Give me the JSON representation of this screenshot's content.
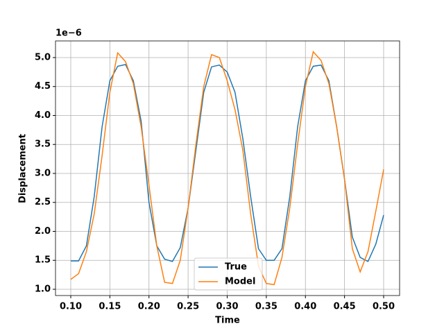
{
  "chart_data": {
    "type": "line",
    "x_label": "Time",
    "y_label": "Displacement",
    "y_offset_text": "1e−6",
    "x": [
      0.1,
      0.11,
      0.12,
      0.13,
      0.14,
      0.15,
      0.16,
      0.17,
      0.18,
      0.19,
      0.2,
      0.21,
      0.22,
      0.23,
      0.24,
      0.25,
      0.26,
      0.27,
      0.28,
      0.29,
      0.3,
      0.31,
      0.32,
      0.33,
      0.34,
      0.35,
      0.36,
      0.37,
      0.38,
      0.39,
      0.4,
      0.41,
      0.42,
      0.43,
      0.44,
      0.45,
      0.46,
      0.47,
      0.48,
      0.49,
      0.5
    ],
    "series": [
      {
        "name": "True",
        "color": "#1f77b4",
        "values": [
          1.49,
          1.49,
          1.75,
          2.6,
          3.8,
          4.6,
          4.85,
          4.88,
          4.6,
          3.9,
          2.5,
          1.75,
          1.52,
          1.48,
          1.72,
          2.4,
          3.4,
          4.4,
          4.84,
          4.87,
          4.75,
          4.4,
          3.6,
          2.6,
          1.7,
          1.5,
          1.5,
          1.7,
          2.6,
          3.8,
          4.6,
          4.85,
          4.87,
          4.6,
          3.8,
          2.9,
          1.9,
          1.55,
          1.48,
          1.78,
          2.28
        ]
      },
      {
        "name": "Model",
        "color": "#ff7f0e",
        "values": [
          1.17,
          1.27,
          1.65,
          2.3,
          3.3,
          4.4,
          5.08,
          4.93,
          4.55,
          3.8,
          2.8,
          1.75,
          1.12,
          1.1,
          1.5,
          2.4,
          3.5,
          4.5,
          5.05,
          5.0,
          4.6,
          4.1,
          3.4,
          2.3,
          1.4,
          1.1,
          1.08,
          1.55,
          2.4,
          3.5,
          4.5,
          5.1,
          4.95,
          4.55,
          3.8,
          2.9,
          1.7,
          1.3,
          1.65,
          2.35,
          3.07
        ]
      }
    ],
    "xlim": [
      0.0805,
      0.5204
    ],
    "ylim": [
      0.892,
      5.287
    ],
    "xticks": [
      {
        "value": 0.1,
        "label": "0.10"
      },
      0.15,
      {
        "value": 0.2,
        "label": "0.20"
      },
      0.25,
      {
        "value": 0.3,
        "label": "0.30"
      },
      0.35,
      {
        "value": 0.4,
        "label": "0.40"
      },
      0.45,
      {
        "value": 0.5,
        "label": "0.50"
      }
    ],
    "yticks": [
      {
        "value": 1,
        "label": "1.0"
      },
      1.5,
      {
        "value": 2,
        "label": "2.0"
      },
      2.5,
      {
        "value": 3,
        "label": "3.0"
      },
      3.5,
      {
        "value": 4,
        "label": "4.0"
      },
      4.5,
      {
        "value": 5,
        "label": "5.0"
      }
    ],
    "grid": true,
    "legend": "lower center"
  }
}
